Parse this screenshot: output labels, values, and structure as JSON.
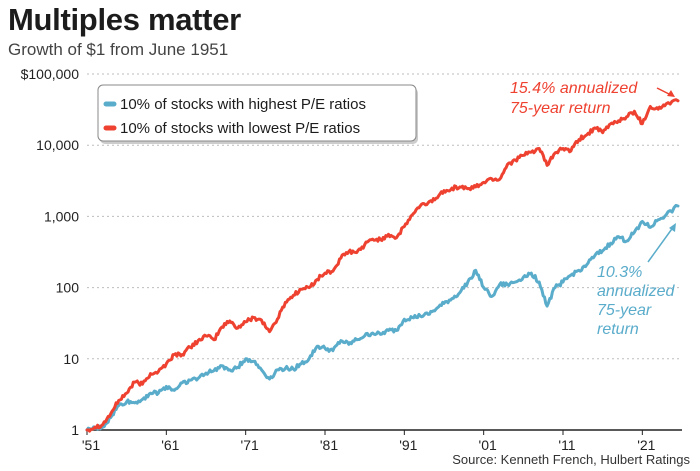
{
  "title": "Multiples matter",
  "subtitle": "Growth of $1 from June 1951",
  "source": "Source: Kenneth French, Hulbert Ratings",
  "chart_data": {
    "type": "line",
    "yscale": "log",
    "ylim": [
      1,
      100000
    ],
    "xlim": [
      1951,
      2026
    ],
    "y_ticks": [
      {
        "value": 1,
        "label": "1"
      },
      {
        "value": 10,
        "label": "10"
      },
      {
        "value": 100,
        "label": "100"
      },
      {
        "value": 1000,
        "label": "1,000"
      },
      {
        "value": 10000,
        "label": "10,000"
      },
      {
        "value": 100000,
        "label": "$100,000"
      }
    ],
    "x_ticks": [
      {
        "value": 1951,
        "label": "'51"
      },
      {
        "value": 1961,
        "label": "'61"
      },
      {
        "value": 1971,
        "label": "'71"
      },
      {
        "value": 1981,
        "label": "'81"
      },
      {
        "value": 1991,
        "label": "'91"
      },
      {
        "value": 2001,
        "label": "'01"
      },
      {
        "value": 2011,
        "label": "'11"
      },
      {
        "value": 2021,
        "label": "'21"
      }
    ],
    "series": [
      {
        "name": "10% of stocks with lowest P/E ratios",
        "color": "#ee4130",
        "x": [
          1951,
          1952,
          1953,
          1954,
          1955,
          1956,
          1957,
          1958,
          1959,
          1960,
          1961,
          1962,
          1963,
          1964,
          1965,
          1966,
          1967,
          1968,
          1969,
          1970,
          1971,
          1972,
          1973,
          1974,
          1975,
          1976,
          1977,
          1978,
          1979,
          1980,
          1981,
          1982,
          1983,
          1984,
          1985,
          1986,
          1987,
          1988,
          1989,
          1990,
          1991,
          1992,
          1993,
          1994,
          1995,
          1996,
          1997,
          1998,
          1999,
          2000,
          2001,
          2002,
          2003,
          2004,
          2005,
          2006,
          2007,
          2008,
          2009,
          2010,
          2011,
          2012,
          2013,
          2014,
          2015,
          2016,
          2017,
          2018,
          2019,
          2020,
          2021,
          2022,
          2023,
          2024,
          2025.5
        ],
        "values": [
          1,
          1.1,
          1.2,
          1.7,
          2.6,
          3.3,
          4.7,
          4.4,
          6.2,
          6.6,
          8.5,
          11.5,
          11.5,
          14.5,
          18,
          21,
          18.5,
          28,
          34,
          27,
          33,
          38,
          35,
          24,
          36,
          62,
          78,
          95,
          100,
          130,
          160,
          170,
          260,
          320,
          310,
          400,
          480,
          470,
          560,
          500,
          720,
          1050,
          1400,
          1550,
          1800,
          2300,
          2500,
          2600,
          2450,
          2600,
          3000,
          3400,
          3300,
          5400,
          6200,
          7200,
          8000,
          9000,
          5200,
          7800,
          9000,
          8300,
          12000,
          14000,
          17500,
          15000,
          20000,
          22000,
          25000,
          30000,
          20000,
          35000,
          32000,
          38000,
          42000
        ]
      },
      {
        "name": "10% of stocks with highest P/E ratios",
        "color": "#5aaccb",
        "x": [
          1951,
          1952,
          1953,
          1954,
          1955,
          1956,
          1957,
          1958,
          1959,
          1960,
          1961,
          1962,
          1963,
          1964,
          1965,
          1966,
          1967,
          1968,
          1969,
          1970,
          1971,
          1972,
          1973,
          1974,
          1975,
          1976,
          1977,
          1978,
          1979,
          1980,
          1981,
          1982,
          1983,
          1984,
          1985,
          1986,
          1987,
          1988,
          1989,
          1990,
          1991,
          1992,
          1993,
          1994,
          1995,
          1996,
          1997,
          1998,
          1999,
          2000,
          2001,
          2002,
          2003,
          2004,
          2005,
          2006,
          2007,
          2008,
          2009,
          2010,
          2011,
          2012,
          2013,
          2014,
          2015,
          2016,
          2017,
          2018,
          2019,
          2020,
          2021,
          2022,
          2023,
          2024,
          2025.5
        ],
        "values": [
          1,
          1.05,
          1.1,
          1.5,
          2.2,
          2.5,
          2.4,
          2.7,
          3.3,
          3.3,
          4.1,
          3.6,
          4.6,
          5,
          5.3,
          6.3,
          6.8,
          8,
          7,
          7.6,
          10,
          9.2,
          7,
          5.2,
          7,
          7.3,
          7.2,
          8.5,
          10,
          15,
          14,
          13,
          18,
          16,
          18.5,
          21,
          23,
          22,
          25,
          25,
          36,
          38,
          40,
          42,
          50,
          60,
          70,
          85,
          120,
          175,
          100,
          75,
          110,
          110,
          120,
          140,
          160,
          120,
          55,
          100,
          120,
          150,
          175,
          210,
          280,
          330,
          420,
          520,
          450,
          600,
          850,
          700,
          900,
          1050,
          1400
        ]
      }
    ],
    "annotations": [
      {
        "text": [
          "15.4% annualized",
          "75-year return"
        ],
        "color": "#ee4130"
      },
      {
        "text": [
          "10.3%",
          "annualized",
          "75-year",
          "return"
        ],
        "color": "#5aaccb"
      }
    ],
    "legend_position": "top-left"
  }
}
